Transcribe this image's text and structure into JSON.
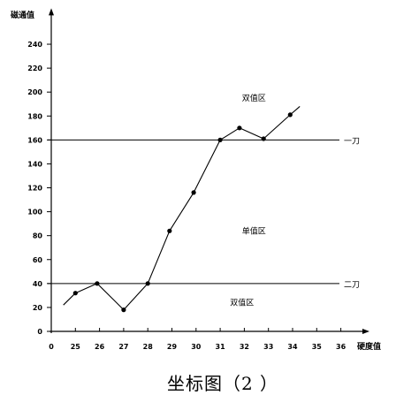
{
  "chart_data": {
    "type": "line",
    "caption": "坐标图（2 ）",
    "xlabel": "硬度值",
    "ylabel": "磁通值",
    "x_origin_label": "0",
    "x_axis_break": true,
    "xticks": [
      25,
      26,
      27,
      28,
      29,
      30,
      31,
      32,
      33,
      34,
      35,
      36
    ],
    "yticks": [
      0,
      20,
      40,
      60,
      80,
      100,
      120,
      140,
      160,
      180,
      200,
      220,
      240
    ],
    "ylim": [
      0,
      270
    ],
    "grid": false,
    "series": [
      {
        "points": [
          {
            "x": 24.5,
            "y": 22,
            "marker": false
          },
          {
            "x": 25,
            "y": 32,
            "marker": true
          },
          {
            "x": 25.9,
            "y": 40,
            "marker": true
          },
          {
            "x": 27,
            "y": 18,
            "marker": true
          },
          {
            "x": 28,
            "y": 40,
            "marker": true
          },
          {
            "x": 28.9,
            "y": 84,
            "marker": true
          },
          {
            "x": 29.9,
            "y": 116,
            "marker": true
          },
          {
            "x": 31,
            "y": 160,
            "marker": true
          },
          {
            "x": 31.8,
            "y": 170,
            "marker": true
          },
          {
            "x": 32.8,
            "y": 161,
            "marker": true
          },
          {
            "x": 33.9,
            "y": 181,
            "marker": true
          },
          {
            "x": 34.3,
            "y": 188,
            "marker": false
          }
        ]
      }
    ],
    "reference_lines": [
      {
        "y": 160,
        "label": "一刀"
      },
      {
        "y": 40,
        "label": "二刀"
      }
    ],
    "annotations": [
      {
        "text": "双值区",
        "x": 32.4,
        "y": 195
      },
      {
        "text": "单值区",
        "x": 32.4,
        "y": 84
      },
      {
        "text": "双值区",
        "x": 31.9,
        "y": 24
      }
    ],
    "colors": {
      "line": "#000000",
      "background": "#ffffff"
    }
  }
}
